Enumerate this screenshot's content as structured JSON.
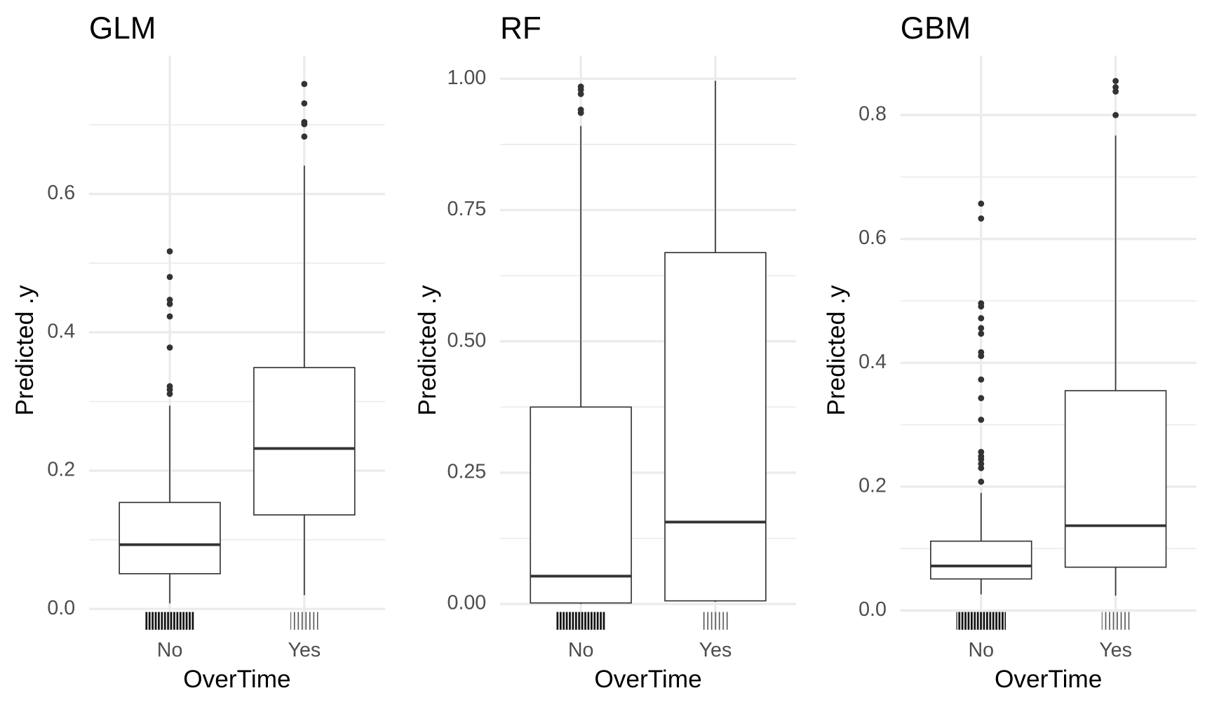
{
  "chart_data": [
    {
      "type": "box",
      "title": "GLM",
      "x_label": "OverTime",
      "y_label": "Predicted .y",
      "categories": [
        "No",
        "Yes"
      ],
      "boxes": [
        {
          "whisker_low": 0.008,
          "q1": 0.051,
          "median": 0.093,
          "q3": 0.154,
          "whisker_high": 0.294,
          "outliers": [
            0.311,
            0.317,
            0.322,
            0.378,
            0.423,
            0.441,
            0.447,
            0.48,
            0.517
          ]
        },
        {
          "whisker_low": 0.02,
          "q1": 0.136,
          "median": 0.232,
          "q3": 0.349,
          "whisker_high": 0.641,
          "outliers": [
            0.683,
            0.701,
            0.704,
            0.731,
            0.759
          ]
        }
      ],
      "ylim": [
        -0.03,
        0.8
      ],
      "yticks": [
        {
          "value": 0,
          "label": "0.0"
        },
        {
          "value": 0.2,
          "label": "0.2"
        },
        {
          "value": 0.4,
          "label": "0.4"
        },
        {
          "value": 0.6,
          "label": "0.6"
        }
      ],
      "minor_grid": [
        0.1,
        0.3,
        0.5,
        0.7
      ],
      "grid": true,
      "box_fill": "#ffffff",
      "line_color": "#333333"
    },
    {
      "type": "box",
      "title": "RF",
      "x_label": "OverTime",
      "y_label": "Predicted .y",
      "categories": [
        "No",
        "Yes"
      ],
      "boxes": [
        {
          "whisker_low": 0.0,
          "q1": 0.002,
          "median": 0.053,
          "q3": 0.375,
          "whisker_high": 0.91,
          "outliers": [
            0.935,
            0.941,
            0.971,
            0.979,
            0.985
          ]
        },
        {
          "whisker_low": 0.004,
          "q1": 0.006,
          "median": 0.156,
          "q3": 0.669,
          "whisker_high": 0.996,
          "outliers": []
        }
      ],
      "ylim": [
        -0.049,
        1.044
      ],
      "yticks": [
        {
          "value": 0,
          "label": "0.00"
        },
        0.25,
        {
          "value": 0.5,
          "label": "0.50"
        },
        0.75,
        {
          "value": 1,
          "label": "1.00"
        }
      ],
      "minor_grid": [
        0.125,
        0.375,
        0.625,
        0.875
      ],
      "grid": true,
      "box_fill": "#ffffff",
      "line_color": "#333333"
    },
    {
      "type": "box",
      "title": "GBM",
      "x_label": "OverTime",
      "y_label": "Predicted .y",
      "categories": [
        "No",
        "Yes"
      ],
      "boxes": [
        {
          "whisker_low": 0.026,
          "q1": 0.051,
          "median": 0.072,
          "q3": 0.112,
          "whisker_high": 0.19,
          "outliers": [
            0.208,
            0.23,
            0.237,
            0.244,
            0.249,
            0.256,
            0.308,
            0.343,
            0.373,
            0.411,
            0.417,
            0.447,
            0.456,
            0.472,
            0.491,
            0.496,
            0.633,
            0.657
          ]
        },
        {
          "whisker_low": 0.024,
          "q1": 0.07,
          "median": 0.137,
          "q3": 0.355,
          "whisker_high": 0.767,
          "outliers": [
            0.8,
            0.838,
            0.845,
            0.855
          ]
        }
      ],
      "ylim": [
        -0.031,
        0.896
      ],
      "yticks": [
        {
          "value": 0,
          "label": "0.0"
        },
        0.2,
        0.4,
        0.6,
        0.8
      ],
      "minor_grid": [
        0.1,
        0.3,
        0.5,
        0.7
      ],
      "grid": true,
      "box_fill": "#ffffff",
      "line_color": "#333333"
    }
  ]
}
